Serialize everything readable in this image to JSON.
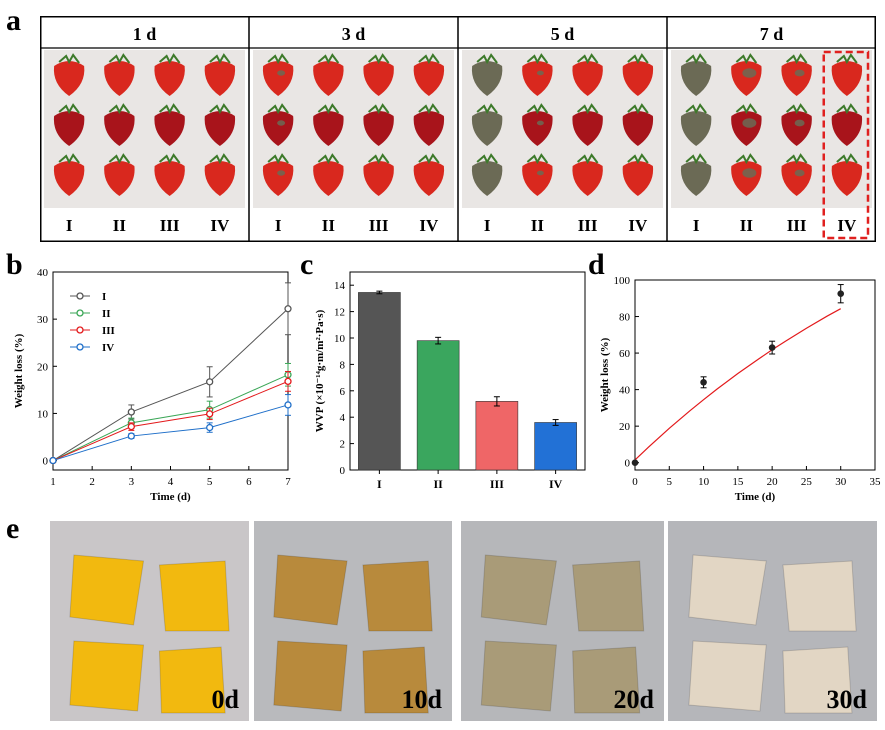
{
  "panels": {
    "a": "a",
    "b": "b",
    "c": "c",
    "d": "d",
    "e": "e"
  },
  "panel_a": {
    "groups": [
      {
        "day": "1 d",
        "labels": [
          "I",
          "II",
          "III",
          "IV"
        ],
        "mold": [
          0,
          0,
          0,
          0
        ]
      },
      {
        "day": "3 d",
        "labels": [
          "I",
          "II",
          "III",
          "IV"
        ],
        "mold": [
          0.1,
          0,
          0,
          0
        ]
      },
      {
        "day": "5 d",
        "labels": [
          "I",
          "II",
          "III",
          "IV"
        ],
        "mold": [
          0.6,
          0.05,
          0,
          0
        ]
      },
      {
        "day": "7 d",
        "labels": [
          "I",
          "II",
          "III",
          "IV"
        ],
        "mold": [
          0.9,
          0.4,
          0.2,
          0
        ]
      }
    ],
    "highlight": {
      "group": 3,
      "column": 3,
      "color": "#e0201f"
    },
    "colors": {
      "berry": "#d9281e",
      "berry_dark": "#a8141b",
      "mold": "#6b6a55",
      "leaf": "#3d7a2a",
      "background": "#e9e6e4"
    }
  },
  "panel_e": {
    "photos": [
      {
        "label": "0d",
        "color": "#f2b90f",
        "bg": "#c9c6c8"
      },
      {
        "label": "10d",
        "color": "#b88a3c",
        "bg": "#b9babd"
      },
      {
        "label": "20d",
        "color": "#a99b78",
        "bg": "#b6b7ba"
      },
      {
        "label": "30d",
        "color": "#e2d6c4",
        "bg": "#b5b6ba"
      }
    ]
  },
  "chart_data": [
    {
      "id": "b",
      "type": "line",
      "xlabel": "Time (d)",
      "ylabel": "Weight loss (%)",
      "xlim": [
        1,
        7
      ],
      "ylim": [
        -2,
        40
      ],
      "xticks": [
        1,
        2,
        3,
        4,
        5,
        6,
        7
      ],
      "yticks": [
        0,
        10,
        20,
        30,
        40
      ],
      "legend_position": "top-left",
      "x": [
        1,
        3,
        5,
        7
      ],
      "series": [
        {
          "name": "I",
          "color": "#555555",
          "values": [
            0,
            10.3,
            16.7,
            32.2
          ],
          "errors": [
            0,
            1.5,
            3.2,
            5.5
          ]
        },
        {
          "name": "II",
          "color": "#3aa656",
          "values": [
            0,
            8.0,
            10.8,
            18.2
          ],
          "errors": [
            0,
            1.0,
            1.8,
            2.4
          ]
        },
        {
          "name": "III",
          "color": "#e31a1c",
          "values": [
            0,
            7.2,
            9.9,
            16.8
          ],
          "errors": [
            0,
            0.8,
            1.2,
            2.1
          ]
        },
        {
          "name": "IV",
          "color": "#1f6fc9",
          "values": [
            0,
            5.2,
            7.0,
            11.8
          ],
          "errors": [
            0,
            0.5,
            1.0,
            2.2
          ]
        }
      ]
    },
    {
      "id": "c",
      "type": "bar",
      "ylabel": "WVP (×10⁻¹⁴g·m/m²·Pa·s)",
      "categories": [
        "I",
        "II",
        "III",
        "IV"
      ],
      "values": [
        13.45,
        9.8,
        5.2,
        3.6
      ],
      "errors": [
        0.1,
        0.25,
        0.35,
        0.22
      ],
      "colors": [
        "#555555",
        "#3aa65e",
        "#ef6667",
        "#2271d6"
      ],
      "ylim": [
        0,
        15
      ],
      "yticks": [
        0,
        2,
        4,
        6,
        8,
        10,
        12,
        14
      ]
    },
    {
      "id": "d",
      "type": "scatter",
      "xlabel": "Time (d)",
      "ylabel": "Weight loss (%)",
      "xlim": [
        0,
        35
      ],
      "ylim": [
        -4,
        100
      ],
      "xticks": [
        0,
        5,
        10,
        15,
        20,
        25,
        30,
        35
      ],
      "yticks": [
        0,
        20,
        40,
        60,
        80,
        100
      ],
      "x": [
        0,
        10,
        20,
        30
      ],
      "values": [
        0,
        44,
        63,
        92.5
      ],
      "errors": [
        0,
        3,
        3.5,
        5
      ],
      "fit_color": "#e31a1c",
      "fit": {
        "x": [
          0,
          2,
          5,
          8,
          10,
          12,
          15,
          18,
          20,
          22,
          25,
          28,
          30
        ],
        "y": [
          1.5,
          8.6,
          18.8,
          28.4,
          34.5,
          40.4,
          48.8,
          56.7,
          61.8,
          66.6,
          73.6,
          80.2,
          84.3
        ]
      }
    }
  ]
}
